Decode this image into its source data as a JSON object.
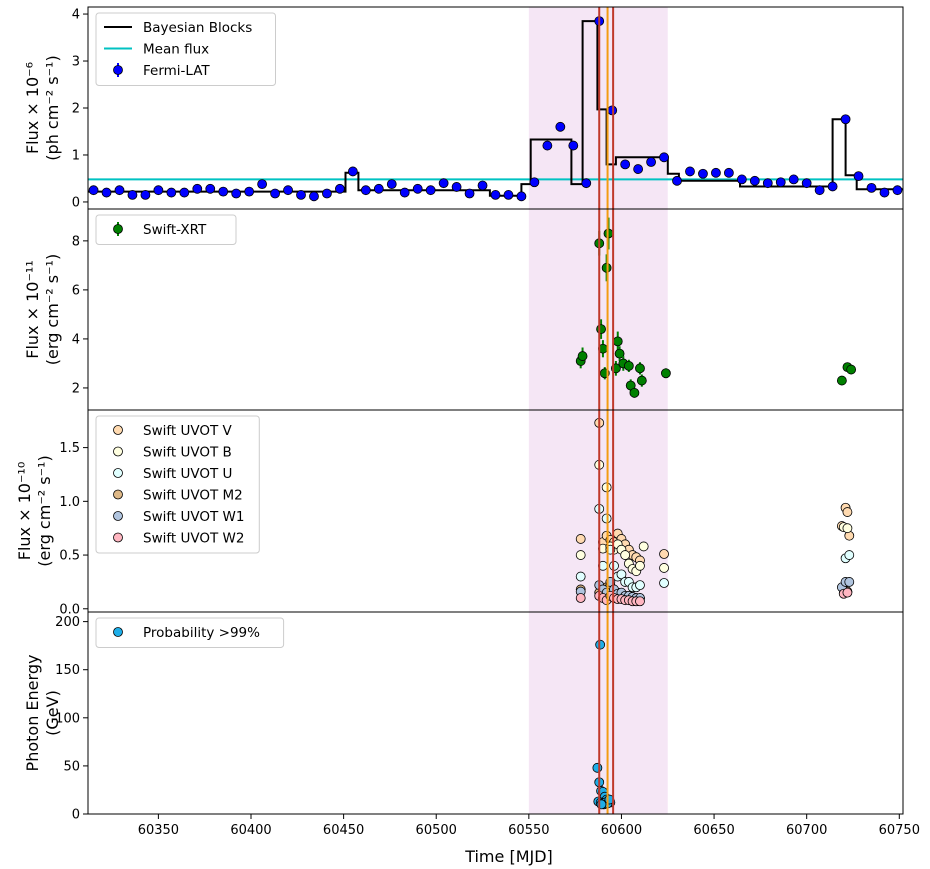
{
  "x_axis": {
    "label": "Time [MJD]",
    "range": [
      60312,
      60752
    ],
    "ticks": [
      60350,
      60400,
      60450,
      60500,
      60550,
      60600,
      60650,
      60700,
      60750
    ]
  },
  "shaded_band": {
    "from": 60550,
    "to": 60625,
    "color": "#f5e6f5"
  },
  "vertical_lines": [
    {
      "x": 60588,
      "color": "#c0392b"
    },
    {
      "x": 60592.5,
      "color": "#f39c12"
    },
    {
      "x": 60595.5,
      "color": "#c0392b"
    }
  ],
  "chart_data": [
    {
      "type": "scatter",
      "panel": "fermi",
      "ylabel_lines": [
        "Flux × 10⁻⁶",
        "(ph cm⁻² s⁻¹)"
      ],
      "ylim": [
        -0.15,
        4.15
      ],
      "yticks": [
        0,
        1,
        2,
        3,
        4
      ],
      "legend": [
        {
          "label": "Bayesian Blocks",
          "kind": "line",
          "color": "#000000"
        },
        {
          "label": "Mean flux",
          "kind": "line",
          "color": "#00c2c2"
        },
        {
          "label": "Fermi-LAT",
          "kind": "errpoint",
          "color": "#0000ff"
        }
      ],
      "mean_flux": 0.48,
      "bayesian_blocks": {
        "edges": [
          60310,
          60451,
          60458,
          60529,
          60546,
          60551,
          60573,
          60579,
          60587,
          60592,
          60597,
          60625,
          60631,
          60664,
          60714,
          60721,
          60727,
          60760
        ],
        "values": [
          0.22,
          0.62,
          0.25,
          0.13,
          0.38,
          1.33,
          0.38,
          3.85,
          1.97,
          0.8,
          0.95,
          0.6,
          0.45,
          0.33,
          1.76,
          0.57,
          0.27
        ]
      },
      "series": [
        {
          "label": "Fermi-LAT",
          "color": "#0000ff",
          "x": [
            60315,
            60322,
            60329,
            60336,
            60343,
            60350,
            60357,
            60364,
            60371,
            60378,
            60385,
            60392,
            60399,
            60406,
            60413,
            60420,
            60427,
            60434,
            60441,
            60448,
            60455,
            60462,
            60469,
            60476,
            60483,
            60490,
            60497,
            60504,
            60511,
            60518,
            60525,
            60532,
            60539,
            60546,
            60553,
            60560,
            60567,
            60574,
            60581,
            60588,
            60595,
            60602,
            60609,
            60616,
            60623,
            60630,
            60637,
            60644,
            60651,
            60658,
            60665,
            60672,
            60679,
            60686,
            60693,
            60700,
            60707,
            60714,
            60721,
            60728,
            60735,
            60742,
            60749
          ],
          "y": [
            0.25,
            0.2,
            0.25,
            0.15,
            0.15,
            0.25,
            0.2,
            0.2,
            0.28,
            0.28,
            0.22,
            0.18,
            0.22,
            0.38,
            0.18,
            0.25,
            0.15,
            0.12,
            0.18,
            0.28,
            0.65,
            0.25,
            0.28,
            0.38,
            0.2,
            0.28,
            0.25,
            0.4,
            0.32,
            0.18,
            0.35,
            0.15,
            0.15,
            0.12,
            0.42,
            1.2,
            1.6,
            1.2,
            0.4,
            3.85,
            1.95,
            0.8,
            0.7,
            0.85,
            0.95,
            0.45,
            0.65,
            0.6,
            0.62,
            0.62,
            0.48,
            0.45,
            0.4,
            0.42,
            0.48,
            0.4,
            0.25,
            0.33,
            1.76,
            0.55,
            0.3,
            0.2,
            0.25
          ],
          "err": 0.04
        }
      ]
    },
    {
      "type": "scatter",
      "panel": "xrt",
      "ylabel_lines": [
        "Flux × 10⁻¹¹",
        "(erg cm⁻² s⁻¹)"
      ],
      "ylim": [
        1.1,
        9.3
      ],
      "yticks": [
        2,
        4,
        6,
        8
      ],
      "legend": [
        {
          "label": "Swift-XRT",
          "kind": "errpoint",
          "color": "#008000"
        }
      ],
      "series": [
        {
          "label": "Swift-XRT",
          "color": "#008000",
          "x": [
            60578,
            60579,
            60588,
            60589,
            60590,
            60591,
            60592,
            60593,
            60597,
            60598,
            60599,
            60601,
            60604,
            60605,
            60607,
            60610,
            60611,
            60624,
            60719,
            60722,
            60724
          ],
          "y": [
            3.1,
            3.3,
            7.9,
            4.4,
            3.6,
            2.6,
            6.9,
            8.3,
            2.8,
            3.9,
            3.4,
            3.0,
            2.9,
            2.1,
            1.8,
            2.8,
            2.3,
            2.6,
            2.3,
            2.85,
            2.75
          ],
          "err": [
            0.3,
            0.35,
            0.5,
            0.4,
            0.35,
            0.25,
            0.55,
            0.65,
            0.3,
            0.4,
            0.3,
            0.3,
            0.25,
            0.25,
            0.2,
            0.25,
            0.25,
            0.2,
            0.15,
            0.15,
            0.15
          ]
        }
      ]
    },
    {
      "type": "scatter",
      "panel": "uvot",
      "ylabel_lines": [
        "Flux × 10⁻¹⁰",
        "(erg cm⁻² s⁻¹)"
      ],
      "ylim": [
        -0.03,
        1.85
      ],
      "yticks": [
        0.0,
        0.5,
        1.0,
        1.5
      ],
      "ytick_format": "1dp",
      "legend": [
        {
          "label": "Swift UVOT V",
          "kind": "circle",
          "color": "#ffdab0"
        },
        {
          "label": "Swift UVOT B",
          "kind": "circle",
          "color": "#ffffe0"
        },
        {
          "label": "Swift UVOT U",
          "kind": "circle",
          "color": "#e0ffff"
        },
        {
          "label": "Swift UVOT M2",
          "kind": "circle",
          "color": "#deb887"
        },
        {
          "label": "Swift UVOT W1",
          "kind": "circle",
          "color": "#b0c4de"
        },
        {
          "label": "Swift UVOT W2",
          "kind": "circle",
          "color": "#ffb6c1"
        }
      ],
      "series": [
        {
          "label": "Swift UVOT V",
          "color": "#ffdab0",
          "x": [
            60578,
            60588,
            60590,
            60592,
            60594,
            60596,
            60598,
            60600,
            60602,
            60604,
            60606,
            60608,
            60610,
            60623,
            60719,
            60721,
            60722,
            60723
          ],
          "y": [
            0.65,
            1.73,
            0.62,
            0.68,
            0.64,
            0.62,
            0.7,
            0.65,
            0.6,
            0.55,
            0.5,
            0.48,
            0.45,
            0.51,
            0.77,
            0.94,
            0.9,
            0.68
          ]
        },
        {
          "label": "Swift UVOT B",
          "color": "#ffffe0",
          "x": [
            60578,
            60588,
            60590,
            60592,
            60594,
            60596,
            60598,
            60600,
            60602,
            60604,
            60606,
            60608,
            60610,
            60612,
            60623,
            60720,
            60722
          ],
          "y": [
            0.5,
            1.34,
            0.56,
            1.13,
            0.58,
            0.55,
            0.6,
            0.55,
            0.5,
            0.42,
            0.37,
            0.35,
            0.4,
            0.58,
            0.38,
            0.76,
            0.75
          ]
        },
        {
          "label": "Swift UVOT U",
          "color": "#e0ffff",
          "x": [
            60578,
            60588,
            60590,
            60592,
            60594,
            60596,
            60598,
            60600,
            60602,
            60604,
            60606,
            60608,
            60610,
            60623,
            60721,
            60723
          ],
          "y": [
            0.3,
            0.93,
            0.4,
            0.84,
            0.55,
            0.4,
            0.3,
            0.32,
            0.25,
            0.25,
            0.2,
            0.2,
            0.22,
            0.24,
            0.47,
            0.5
          ]
        },
        {
          "label": "Swift UVOT M2",
          "color": "#deb887",
          "x": [
            60578,
            60588,
            60590,
            60592,
            60594,
            60596,
            60598,
            60600,
            60602,
            60604,
            60606,
            60608,
            60610,
            60720,
            60722
          ],
          "y": [
            0.18,
            0.15,
            0.16,
            0.2,
            0.22,
            0.17,
            0.15,
            0.14,
            0.12,
            0.12,
            0.1,
            0.1,
            0.1,
            0.18,
            0.16
          ]
        },
        {
          "label": "Swift UVOT W1",
          "color": "#b0c4de",
          "x": [
            60578,
            60588,
            60590,
            60592,
            60594,
            60596,
            60598,
            60600,
            60602,
            60604,
            60606,
            60608,
            60610,
            60719,
            60721,
            60723
          ],
          "y": [
            0.16,
            0.22,
            0.18,
            0.15,
            0.25,
            0.18,
            0.14,
            0.15,
            0.12,
            0.12,
            0.11,
            0.1,
            0.1,
            0.2,
            0.25,
            0.25
          ]
        },
        {
          "label": "Swift UVOT W2",
          "color": "#ffb6c1",
          "x": [
            60578,
            60588,
            60590,
            60592,
            60594,
            60596,
            60598,
            60600,
            60602,
            60604,
            60606,
            60608,
            60610,
            60720,
            60722
          ],
          "y": [
            0.1,
            0.12,
            0.1,
            0.08,
            0.12,
            0.1,
            0.09,
            0.09,
            0.08,
            0.08,
            0.07,
            0.07,
            0.07,
            0.14,
            0.15
          ]
        }
      ]
    },
    {
      "type": "scatter",
      "panel": "photons",
      "ylabel_lines": [
        "Photon Energy",
        "(GeV)"
      ],
      "ylim": [
        0,
        210
      ],
      "yticks": [
        0,
        50,
        100,
        150,
        200
      ],
      "legend": [
        {
          "label": "Probability >99%",
          "kind": "circle",
          "color": "#1eaee8"
        }
      ],
      "series": [
        {
          "label": "Probability >99%",
          "color": "#1eaee8",
          "x": [
            60588.5,
            60587,
            60588,
            60589,
            60590,
            60591,
            60592,
            60593,
            60594,
            60587.5,
            60588.8,
            60589.5,
            60590.5,
            60591.5,
            60592.5,
            60593.5,
            60589.2
          ],
          "y": [
            176,
            48,
            33,
            24,
            23,
            18,
            15,
            14,
            12,
            13,
            12,
            11,
            10,
            12,
            11,
            15,
            10
          ]
        }
      ]
    }
  ]
}
